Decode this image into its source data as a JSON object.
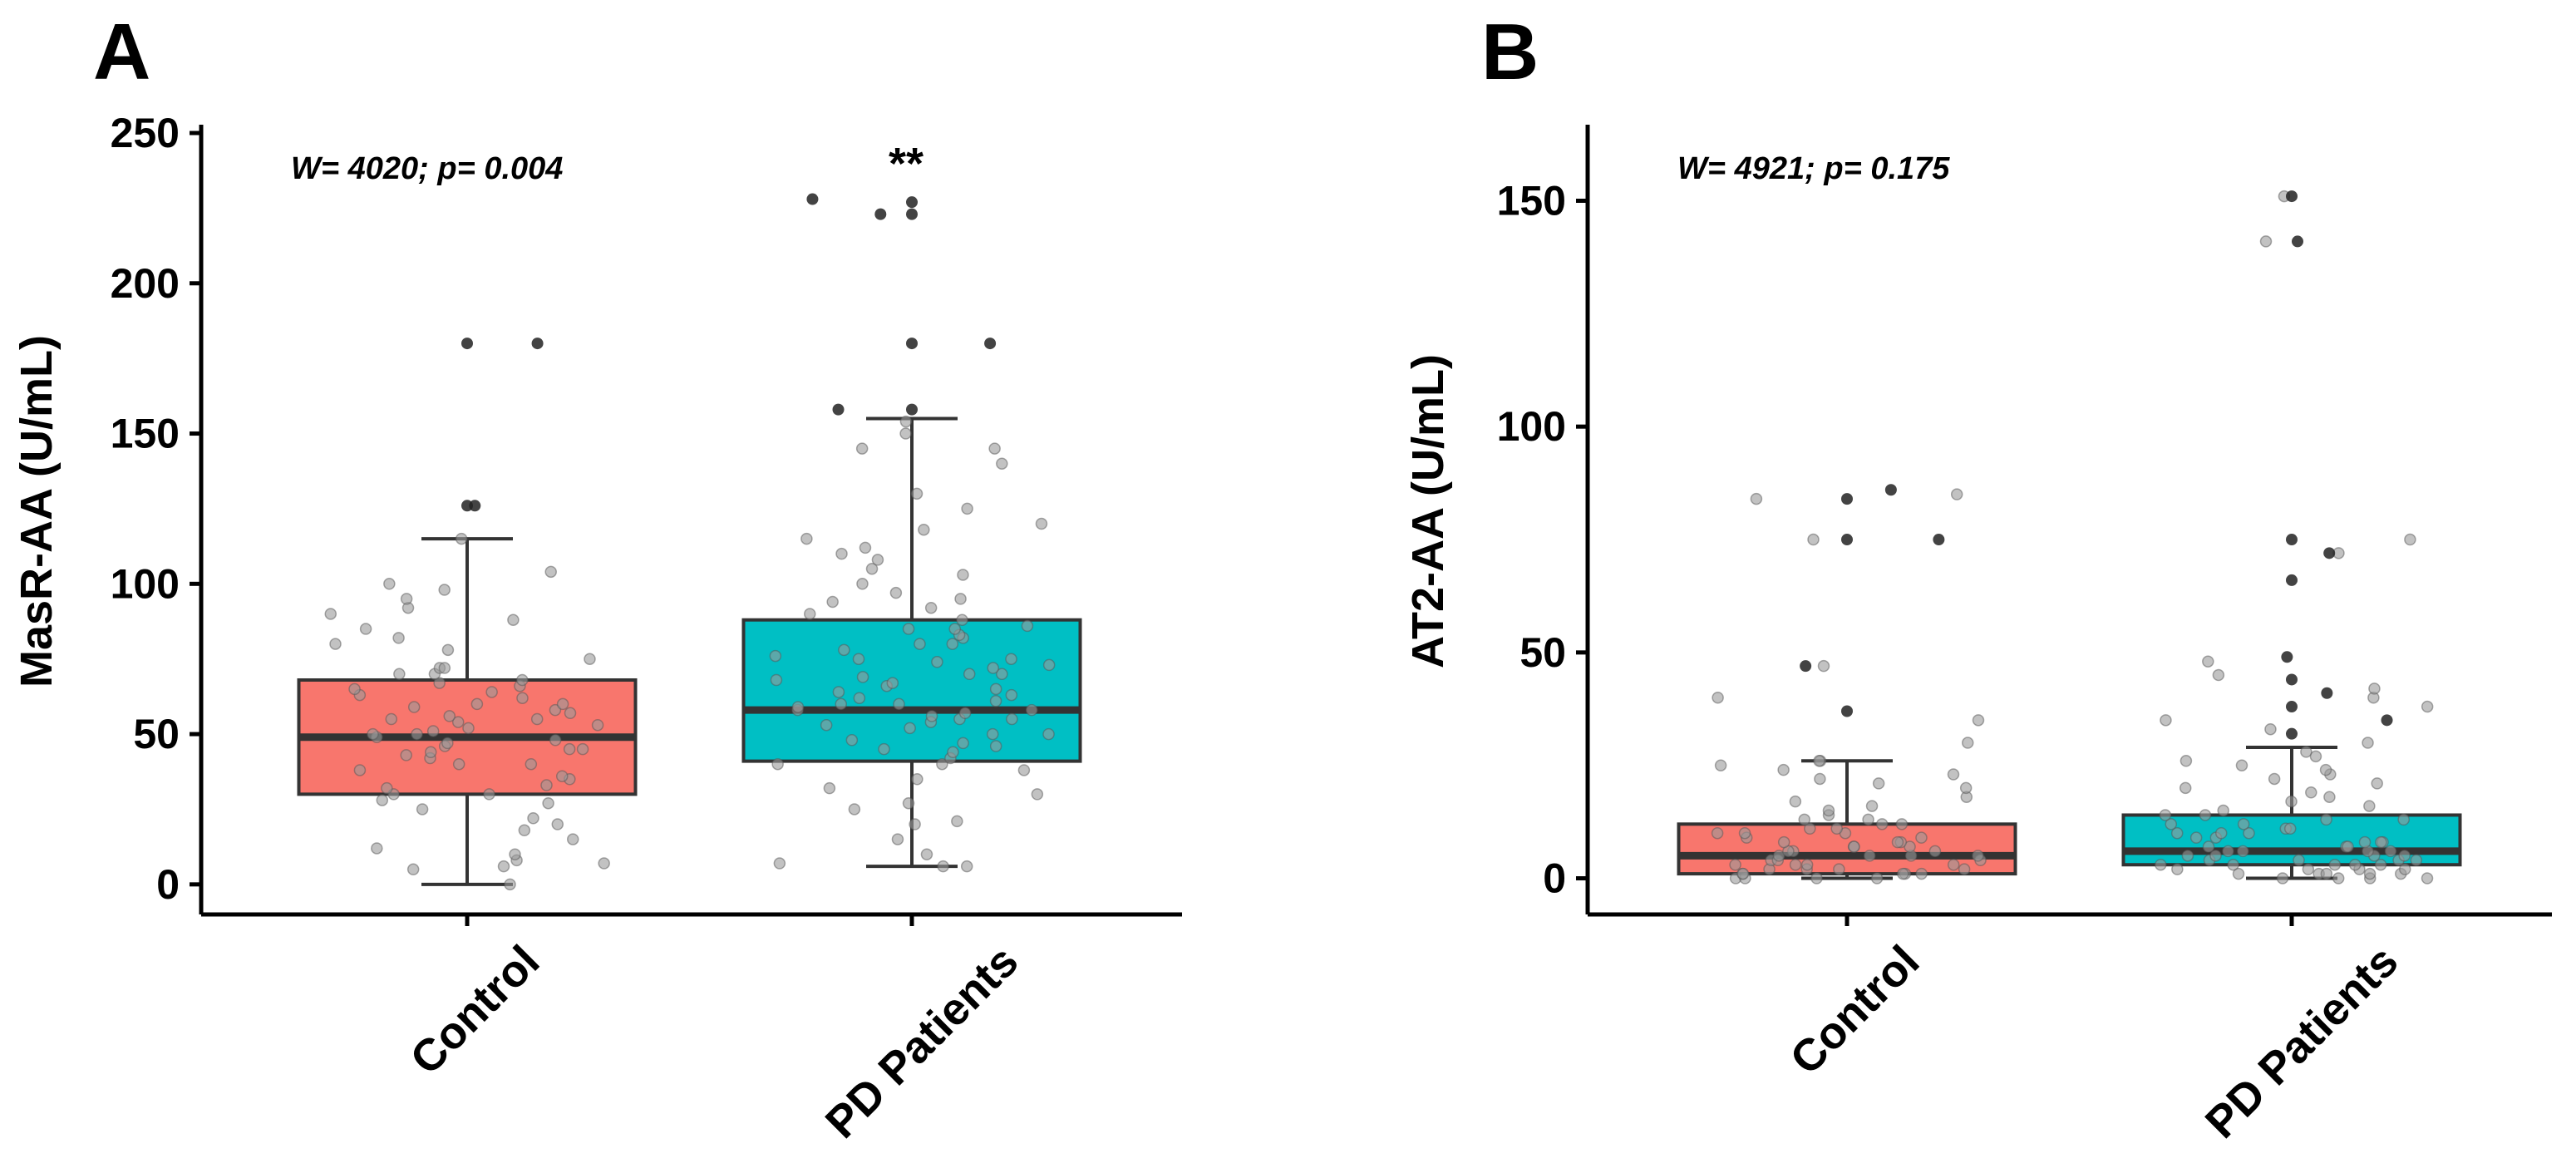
{
  "colors": {
    "control_box": "#F8766D",
    "pd_box": "#00BFC4",
    "box_outline": "#333333",
    "point_light": "#9a9a9a",
    "point_dark": "#222222"
  },
  "chart_data": [
    {
      "type": "box",
      "panel_label": "A",
      "title": "",
      "xlabel": "",
      "ylabel": "MasR-AA (U/mL)",
      "ylim": [
        -10,
        250
      ],
      "yticks": [
        0,
        50,
        100,
        150,
        200,
        250
      ],
      "categories": [
        "Control",
        "PD Patients"
      ],
      "annotation": "W= 4020; p= 0.004",
      "significance": {
        "label": "**",
        "category": "PD Patients"
      },
      "boxes": [
        {
          "category": "Control",
          "whisker_low": 0,
          "q1": 30,
          "median": 49,
          "q3": 68,
          "whisker_high": 115,
          "outliers": [
            126,
            126,
            180,
            180
          ],
          "points": [
            0,
            5,
            6,
            7,
            8,
            10,
            12,
            15,
            18,
            20,
            22,
            25,
            27,
            28,
            30,
            30,
            32,
            33,
            35,
            36,
            38,
            40,
            40,
            42,
            43,
            44,
            45,
            45,
            46,
            47,
            48,
            49,
            50,
            50,
            51,
            52,
            53,
            54,
            55,
            55,
            56,
            57,
            58,
            59,
            60,
            60,
            62,
            63,
            64,
            65,
            66,
            67,
            68,
            70,
            70,
            72,
            72,
            75,
            78,
            80,
            82,
            85,
            88,
            90,
            92,
            95,
            98,
            100,
            104,
            115
          ]
        },
        {
          "category": "PD Patients",
          "whisker_low": 6,
          "q1": 41,
          "median": 58,
          "q3": 88,
          "whisker_high": 155,
          "outliers": [
            158,
            158,
            180,
            180,
            223,
            223,
            227,
            228
          ],
          "points": [
            6,
            6,
            7,
            10,
            15,
            20,
            21,
            25,
            27,
            30,
            32,
            35,
            38,
            40,
            40,
            42,
            44,
            45,
            46,
            47,
            48,
            50,
            50,
            52,
            53,
            54,
            55,
            55,
            56,
            57,
            58,
            58,
            59,
            60,
            60,
            61,
            62,
            63,
            64,
            65,
            66,
            67,
            68,
            69,
            70,
            70,
            72,
            73,
            74,
            75,
            75,
            76,
            78,
            80,
            80,
            82,
            83,
            85,
            85,
            86,
            88,
            90,
            92,
            94,
            95,
            97,
            100,
            103,
            105,
            108,
            110,
            112,
            115,
            118,
            120,
            125,
            130,
            140,
            145,
            145,
            150,
            154
          ]
        }
      ]
    },
    {
      "type": "box",
      "panel_label": "B",
      "title": "",
      "xlabel": "",
      "ylabel": "AT2-AA (U/mL)",
      "ylim": [
        -8,
        165
      ],
      "yticks": [
        0,
        50,
        100,
        150
      ],
      "categories": [
        "Control",
        "PD Patients"
      ],
      "annotation": "W= 4921; p= 0.175",
      "significance": null,
      "boxes": [
        {
          "category": "Control",
          "whisker_low": 0,
          "q1": 1,
          "median": 5,
          "q3": 12,
          "whisker_high": 26,
          "outliers": [
            37,
            47,
            75,
            75,
            84,
            86
          ],
          "points": [
            0,
            0,
            0,
            0,
            1,
            1,
            1,
            1,
            1,
            2,
            2,
            2,
            2,
            3,
            3,
            3,
            3,
            4,
            4,
            4,
            5,
            5,
            5,
            5,
            6,
            6,
            6,
            7,
            7,
            7,
            8,
            8,
            8,
            9,
            9,
            10,
            10,
            10,
            11,
            11,
            12,
            12,
            13,
            13,
            14,
            15,
            16,
            17,
            18,
            20,
            21,
            22,
            23,
            24,
            25,
            26,
            26,
            30,
            35,
            40,
            47,
            75,
            84,
            85
          ]
        },
        {
          "category": "PD Patients",
          "whisker_low": 0,
          "q1": 3,
          "median": 6,
          "q3": 14,
          "whisker_high": 29,
          "outliers": [
            32,
            35,
            38,
            41,
            44,
            49,
            66,
            72,
            75,
            141,
            151
          ],
          "points": [
            0,
            0,
            0,
            0,
            1,
            1,
            1,
            1,
            1,
            2,
            2,
            2,
            2,
            3,
            3,
            3,
            3,
            3,
            4,
            4,
            4,
            4,
            5,
            5,
            5,
            5,
            6,
            6,
            6,
            6,
            7,
            7,
            7,
            8,
            8,
            8,
            9,
            9,
            10,
            10,
            10,
            11,
            11,
            12,
            12,
            13,
            13,
            14,
            14,
            15,
            16,
            17,
            18,
            19,
            20,
            21,
            22,
            23,
            24,
            25,
            26,
            27,
            28,
            30,
            33,
            35,
            38,
            40,
            42,
            45,
            48,
            72,
            75,
            141,
            151
          ]
        }
      ]
    }
  ]
}
